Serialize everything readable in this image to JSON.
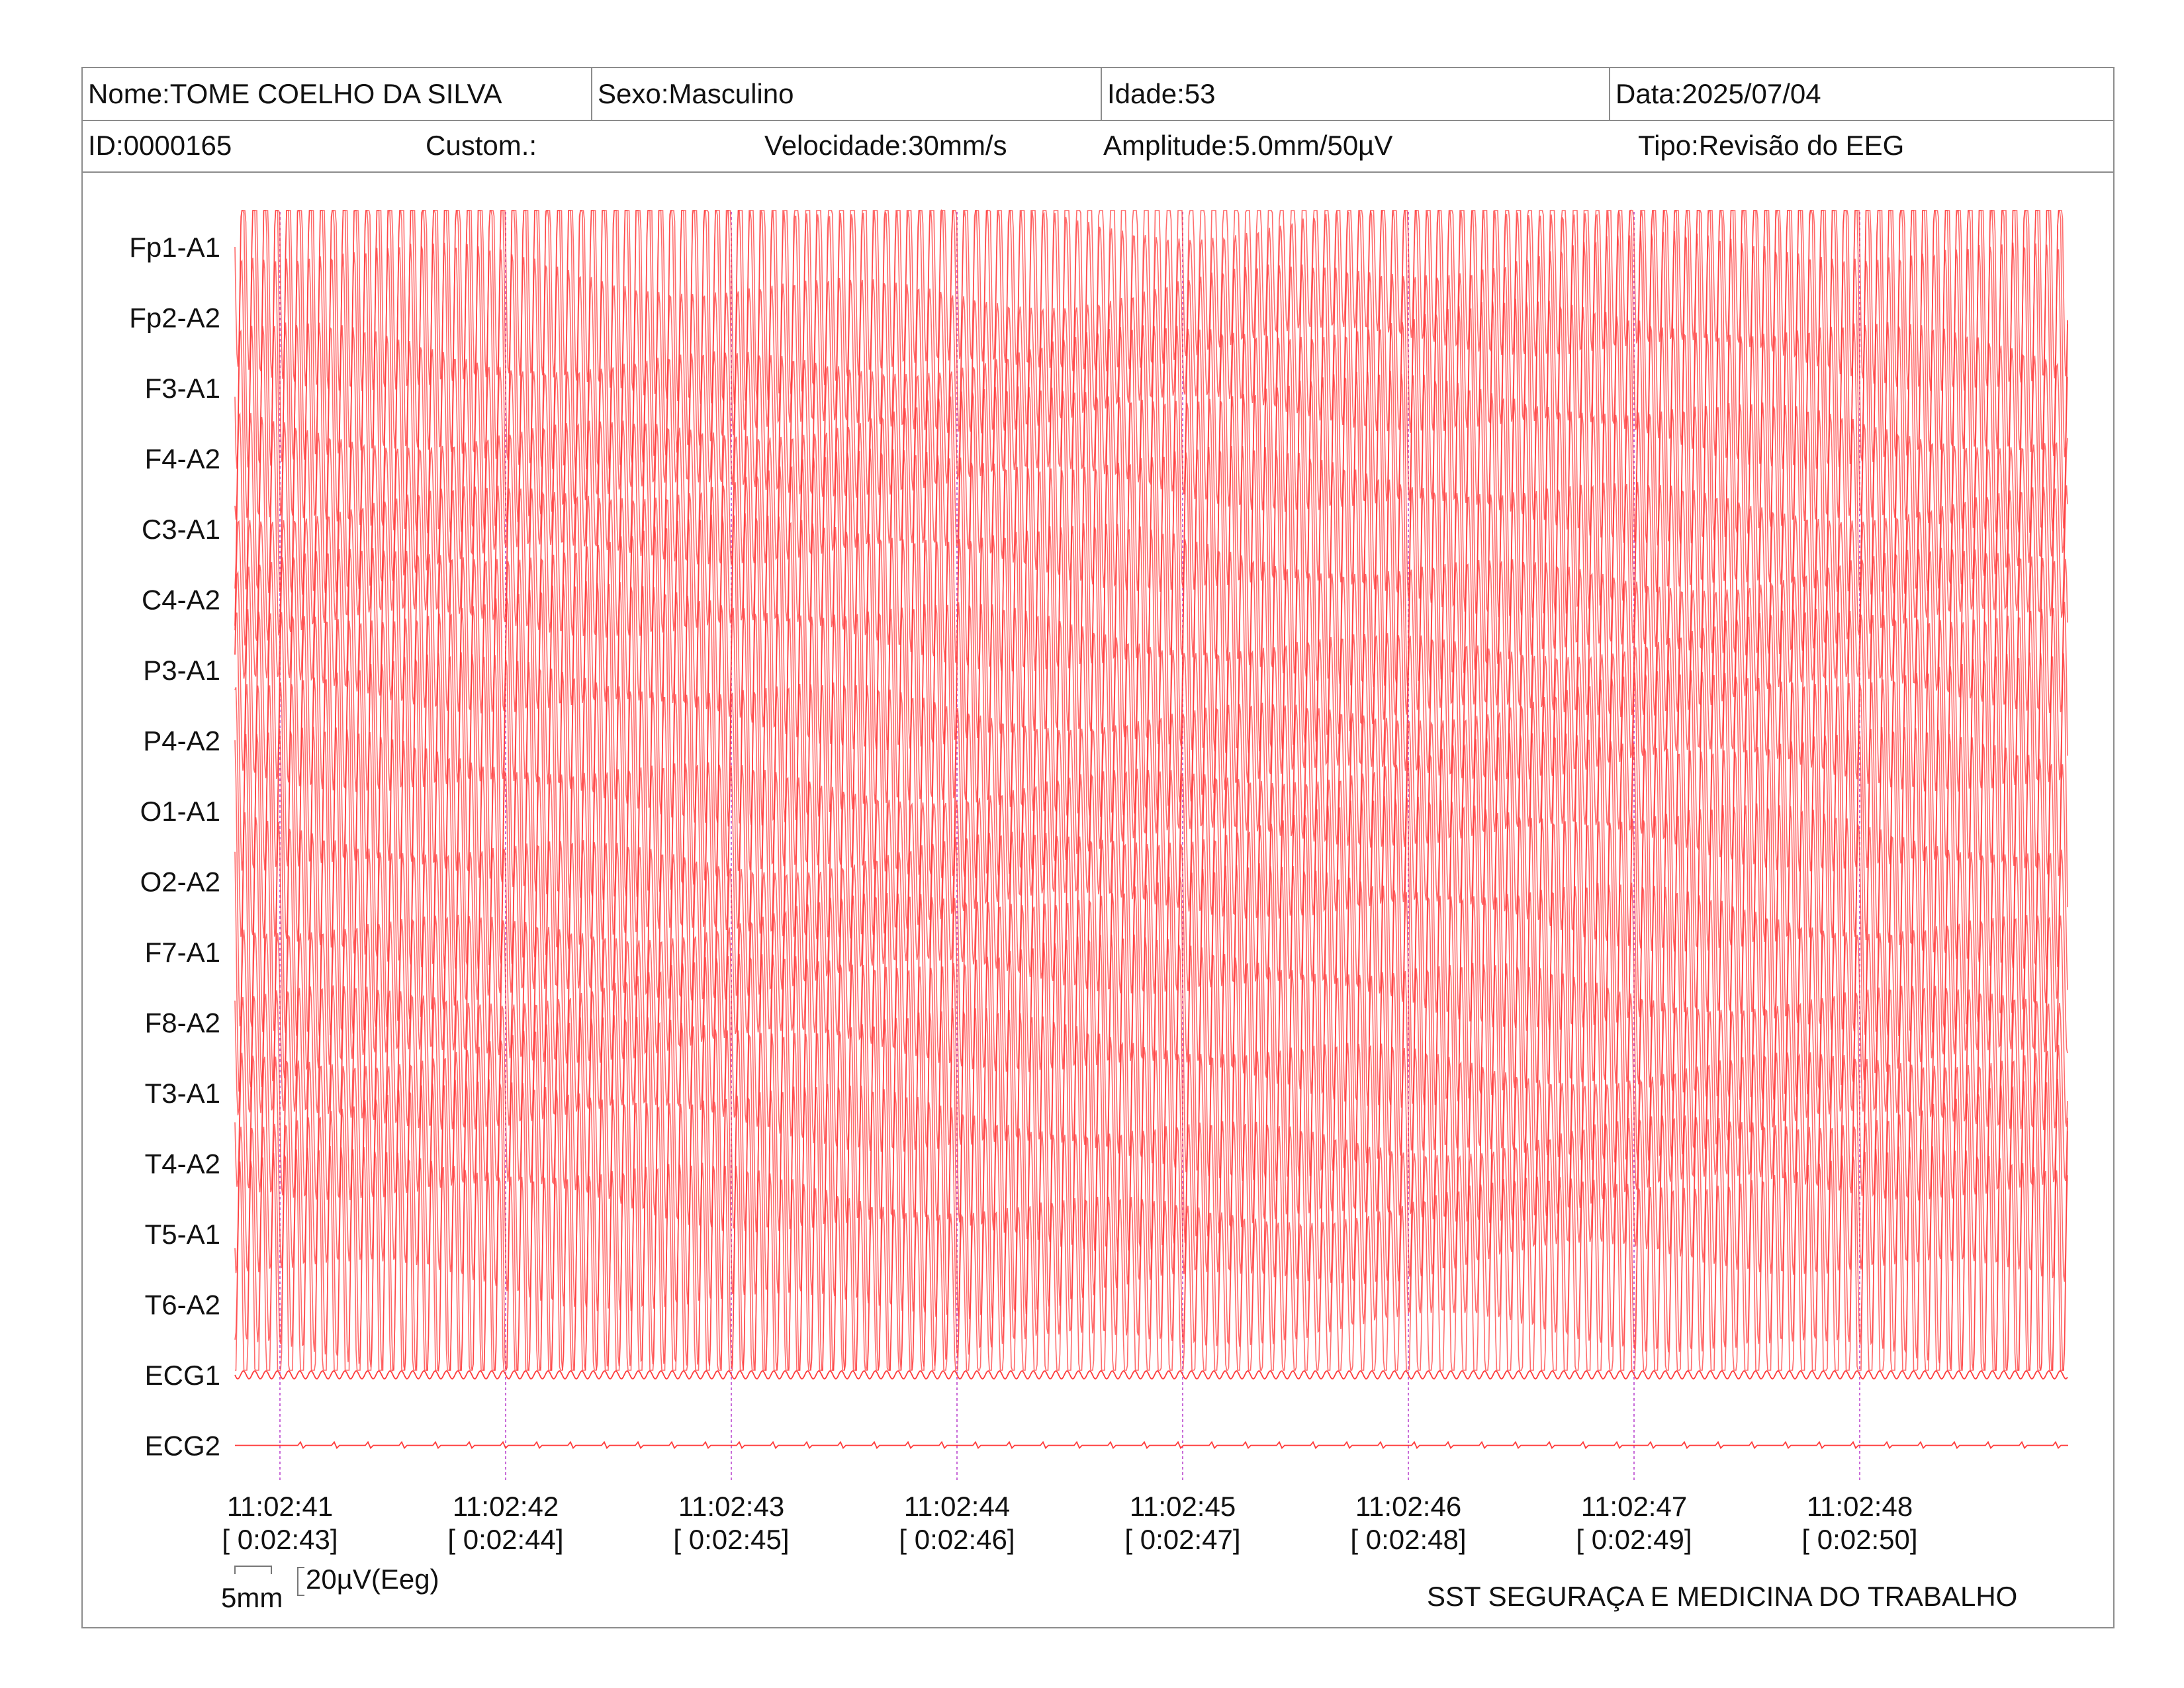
{
  "header": {
    "nome": "Nome:TOME COELHO DA SILVA",
    "sexo": "Sexo:Masculino",
    "idade": "Idade:53",
    "data": "Data:2025/07/04",
    "id": "ID:0000165",
    "custom": "Custom.:",
    "velocidade": "Velocidade:30mm/s",
    "amplitude": "Amplitude:5.0mm/50µV",
    "tipo": "Tipo:Revisão do EEG"
  },
  "footer": {
    "scale_mm": "5mm",
    "scale_uv": "20µV(Eeg)",
    "company": "SST SEGURAÇA E MEDICINA DO TRABALHO"
  },
  "colors": {
    "trace": "#ff3b3b",
    "time_marker": "#c86ad8",
    "border": "#8c8c8c"
  },
  "chart_data": {
    "type": "line",
    "channels": [
      "Fp1-A1",
      "Fp2-A2",
      "F3-A1",
      "F4-A2",
      "C3-A1",
      "C4-A2",
      "P3-A1",
      "P4-A2",
      "O1-A1",
      "O2-A2",
      "F7-A1",
      "F8-A2",
      "T3-A1",
      "T4-A2",
      "T5-A1",
      "T6-A2",
      "ECG1",
      "ECG2"
    ],
    "time_labels": [
      "11:02:41",
      "11:02:42",
      "11:02:43",
      "11:02:44",
      "11:02:45",
      "11:02:46",
      "11:02:47",
      "11:02:48"
    ],
    "elapsed_labels": [
      "[ 0:02:43]",
      "[ 0:02:44]",
      "[ 0:02:45]",
      "[ 0:02:46]",
      "[ 0:02:47]",
      "[ 0:02:48]",
      "[ 0:02:49]",
      "[ 0:02:50]"
    ],
    "eeg_cycles_per_second": 20,
    "grid": false
  }
}
